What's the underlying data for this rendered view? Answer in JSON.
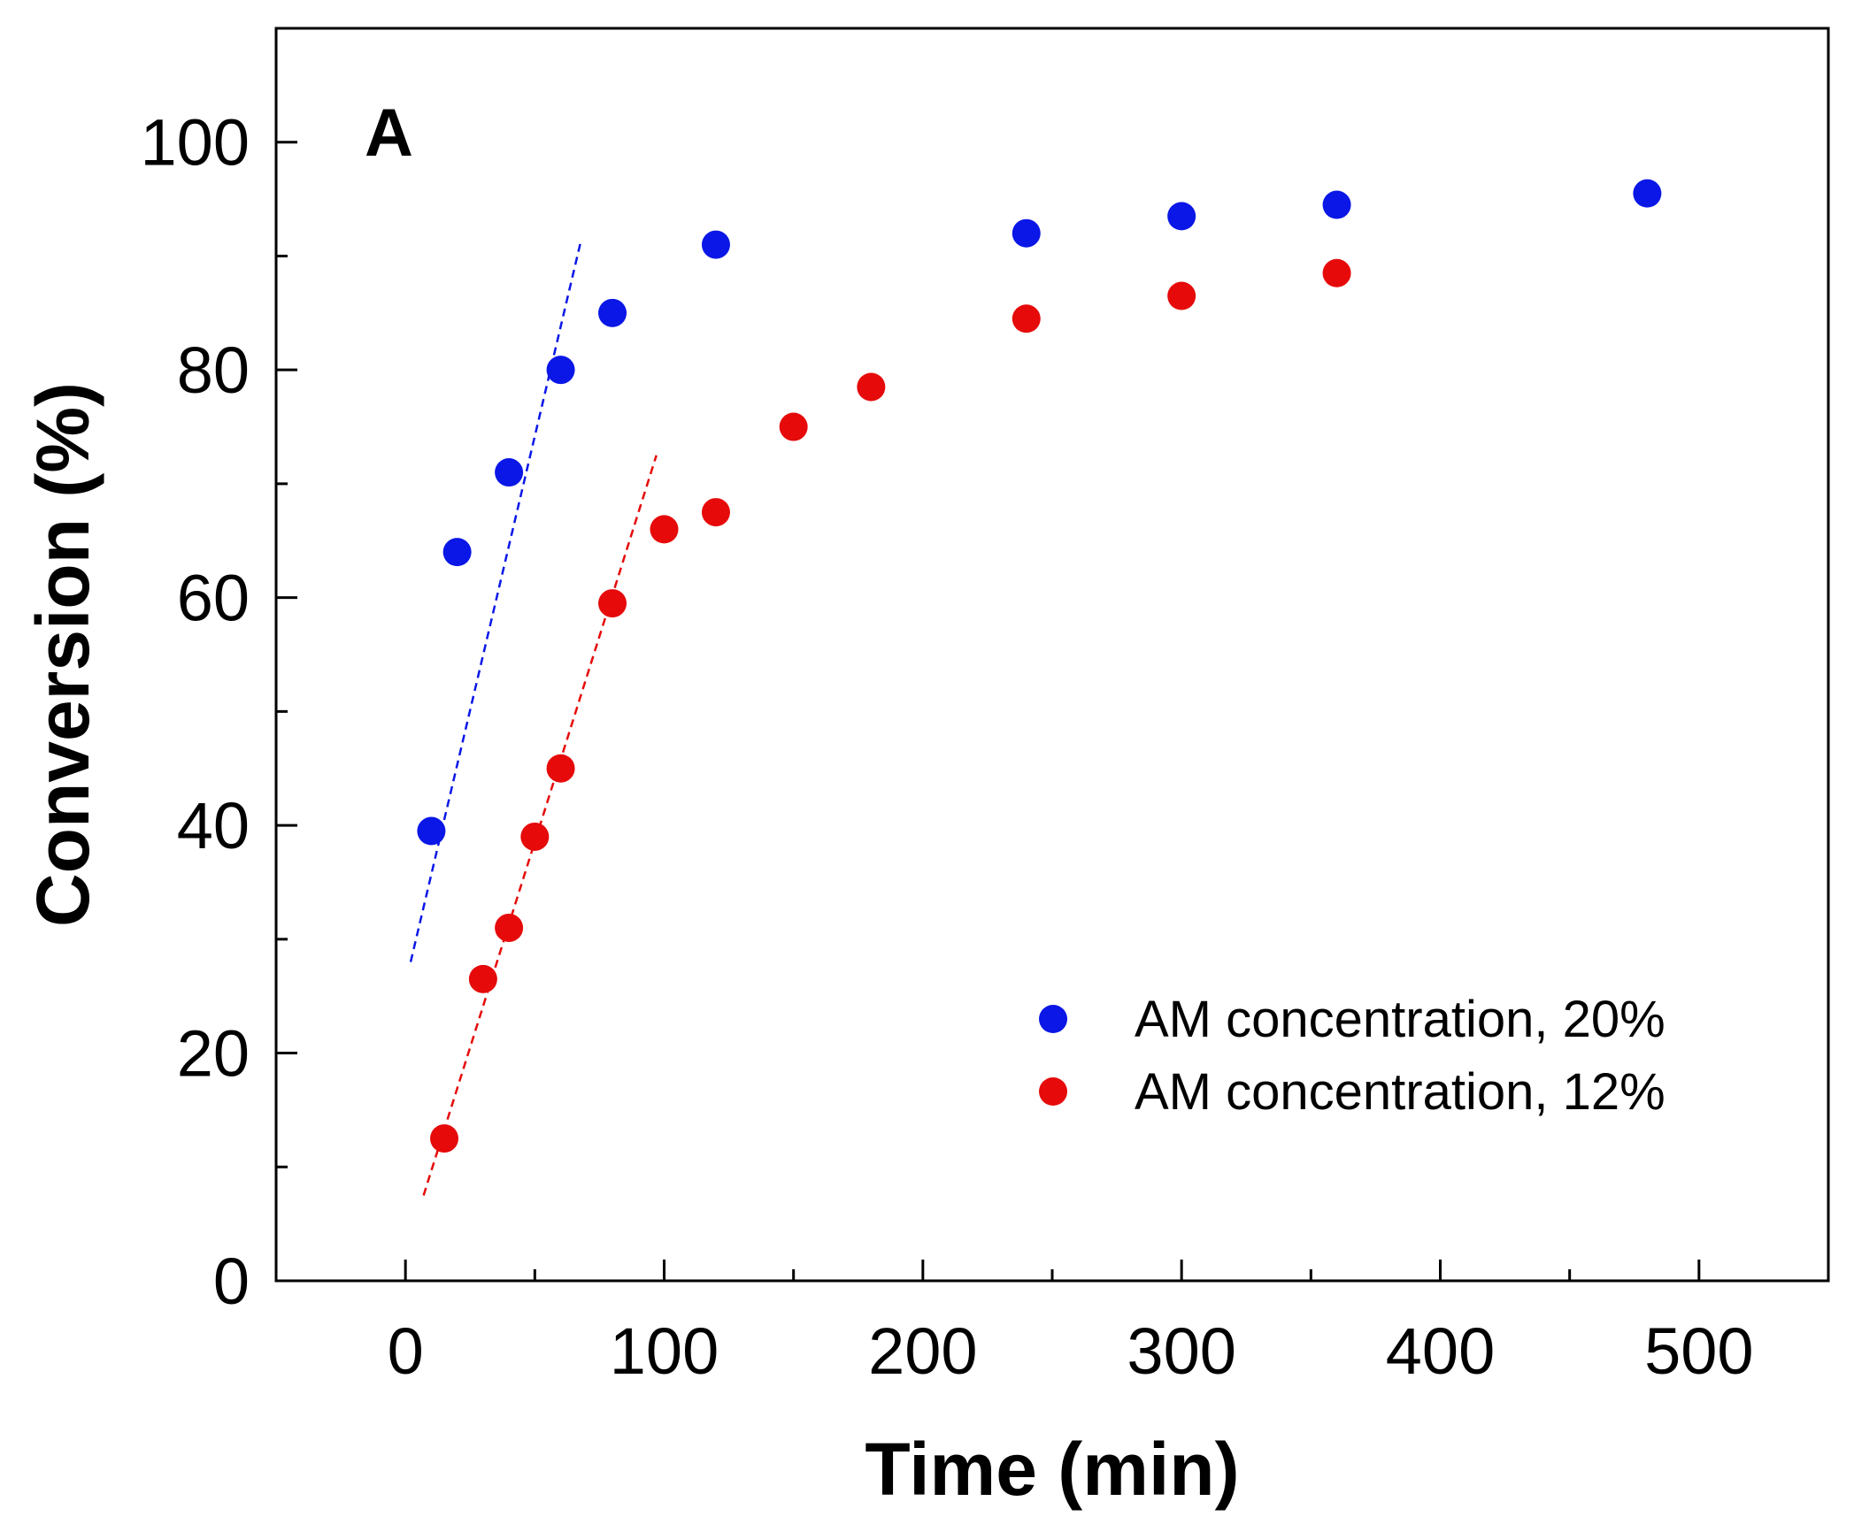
{
  "chart_data": {
    "type": "scatter",
    "panel_label": "A",
    "xlabel": "Time (min)",
    "ylabel": "Conversion (%)",
    "xlim": [
      -50,
      550
    ],
    "ylim": [
      0,
      110
    ],
    "xticks": [
      0,
      100,
      200,
      300,
      400,
      500
    ],
    "xticks_minor": [
      50,
      150,
      250,
      350,
      450
    ],
    "yticks": [
      0,
      20,
      40,
      60,
      80,
      100
    ],
    "yticks_minor": [
      10,
      30,
      50,
      70,
      90
    ],
    "grid": false,
    "legend_position": "bottom-right",
    "series": [
      {
        "name": "AM concentration, 20%",
        "color": "#0a17e6",
        "x": [
          10,
          20,
          40,
          60,
          80,
          120,
          240,
          300,
          360,
          480
        ],
        "y": [
          39.5,
          64,
          71,
          80,
          85,
          91,
          92,
          93.5,
          94.5,
          95.5
        ],
        "fit_line": {
          "style": "dashed",
          "x": [
            2,
            68
          ],
          "y": [
            28,
            91.5
          ]
        }
      },
      {
        "name": "AM concentration, 12%",
        "color": "#e60a0a",
        "x": [
          15,
          30,
          40,
          50,
          60,
          80,
          100,
          120,
          150,
          180,
          240,
          300,
          360
        ],
        "y": [
          12.5,
          26.5,
          31,
          39,
          45,
          59.5,
          66,
          67.5,
          75,
          78.5,
          84.5,
          86.5,
          88.5
        ],
        "fit_line": {
          "style": "dashed",
          "x": [
            7,
            97
          ],
          "y": [
            7.5,
            72.5
          ]
        }
      }
    ]
  }
}
